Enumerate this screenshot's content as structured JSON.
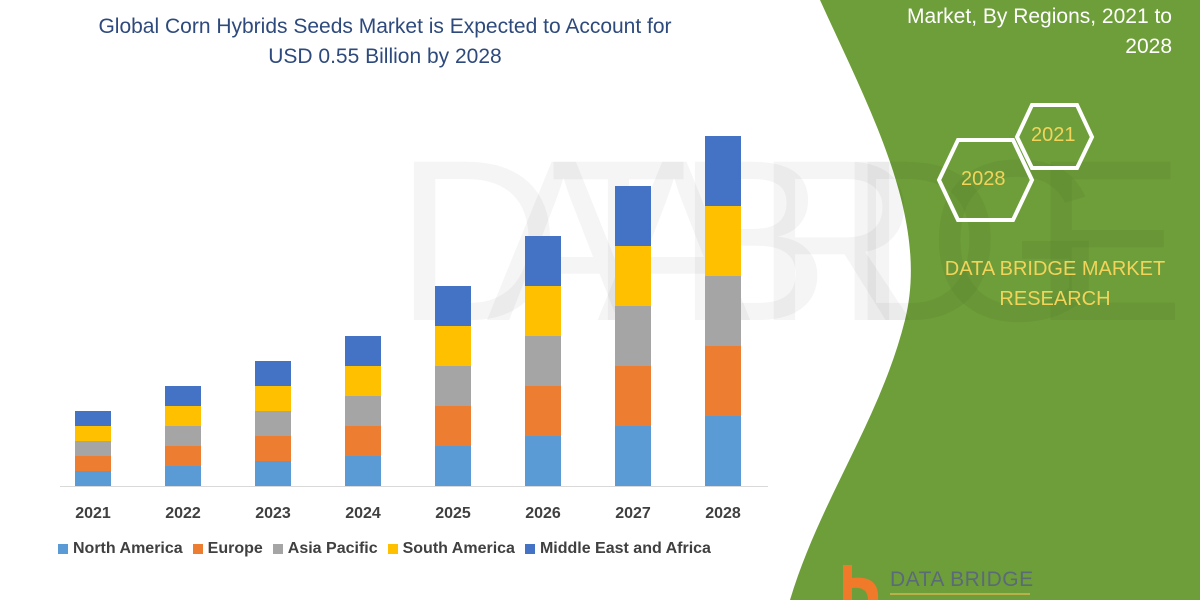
{
  "header": {
    "title_line1": "Global Corn Hybrids Seeds Market is Expected to Account for",
    "title_line2": "USD 0.55 Billion by 2028",
    "side_title_line1": "Market, By Regions, 2021 to",
    "side_title_line2": "2028"
  },
  "badges": {
    "hex_back": "2021",
    "hex_front": "2028"
  },
  "brand": {
    "line1": "DATA BRIDGE MARKET",
    "line2": "RESEARCH",
    "logo_text": "DATA BRIDGE"
  },
  "colors": {
    "panel_green": "#6E9E3A",
    "title_blue": "#2E4A7D",
    "brand_yellow": "#F2D45A",
    "logo_orange": "#F07A2A"
  },
  "chart_data": {
    "type": "bar",
    "stacked": true,
    "categories": [
      "2021",
      "2022",
      "2023",
      "2024",
      "2025",
      "2026",
      "2027",
      "2028"
    ],
    "series": [
      {
        "name": "North America",
        "color": "#5B9BD5",
        "values": [
          15,
          20,
          25,
          30,
          40,
          50,
          60,
          70
        ]
      },
      {
        "name": "Europe",
        "color": "#ED7D31",
        "values": [
          15,
          20,
          25,
          30,
          40,
          50,
          60,
          70
        ]
      },
      {
        "name": "Asia Pacific",
        "color": "#A5A5A5",
        "values": [
          15,
          20,
          25,
          30,
          40,
          50,
          60,
          70
        ]
      },
      {
        "name": "South America",
        "color": "#FFC000",
        "values": [
          15,
          20,
          25,
          30,
          40,
          50,
          60,
          70
        ]
      },
      {
        "name": "Middle East and Africa",
        "color": "#4472C4",
        "values": [
          15,
          20,
          25,
          30,
          40,
          50,
          60,
          70
        ]
      }
    ],
    "value_note_unit": "relative",
    "ylim": [
      0,
      360
    ],
    "y_axis_shown": false,
    "grid": false,
    "legend_position": "bottom"
  }
}
